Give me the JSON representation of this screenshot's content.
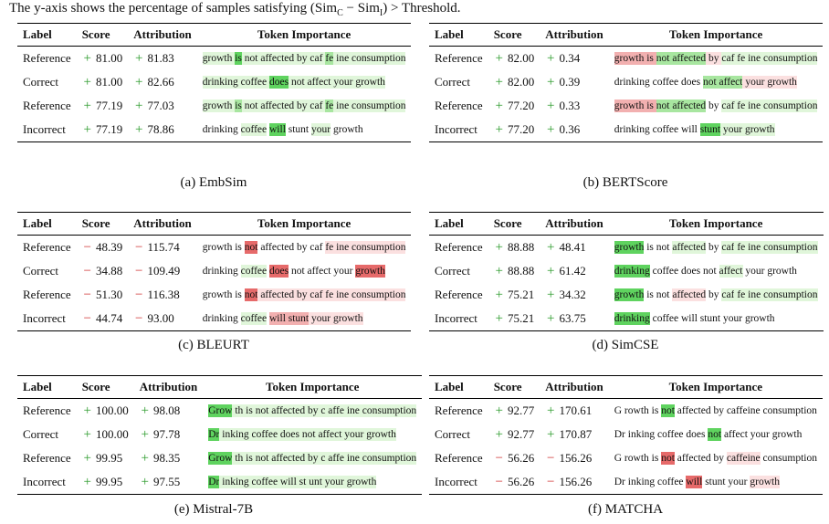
{
  "intro": {
    "prefix": "The y-axis shows the percentage of samples satisfying (Sim",
    "sub_c": "C",
    "mid": " − Sim",
    "sub_i": "I",
    "suffix": ") > Threshold."
  },
  "colors": {
    "positive_sign": "#2e9b2e",
    "negative_sign": "#d03030",
    "green_strong": "#5fd35f",
    "green_medium": "#a8e6a0",
    "green_light": "#e0f6da",
    "red_strong": "#e66a6a",
    "red_medium": "#f2b0b0",
    "red_light": "#fbe0e0"
  },
  "headers": {
    "label": "Label",
    "score": "Score",
    "attribution": "Attribution",
    "token_importance": "Token Importance"
  },
  "panels": [
    {
      "caption": "(a) EmbSim",
      "rows": [
        {
          "label": "Reference",
          "score_sign": "+",
          "score": "81.00",
          "attr_sign": "+",
          "attr": "81.83",
          "tokens": [
            {
              "t": "growth ",
              "c": "gl"
            },
            {
              "t": "is",
              "c": "gs"
            },
            {
              "t": " not affected by caf ",
              "c": "gl"
            },
            {
              "t": "fe",
              "c": "gm"
            },
            {
              "t": " ine consumption",
              "c": "gl"
            }
          ]
        },
        {
          "label": "Correct",
          "score_sign": "+",
          "score": "81.00",
          "attr_sign": "+",
          "attr": "82.66",
          "tokens": [
            {
              "t": "drinking ",
              "c": "gl"
            },
            {
              "t": "coffee ",
              "c": "gl"
            },
            {
              "t": "does",
              "c": "gs"
            },
            {
              "t": " not affect your growth",
              "c": "gl"
            }
          ]
        },
        {
          "label": "Reference",
          "score_sign": "+",
          "score": "77.19",
          "attr_sign": "+",
          "attr": "77.03",
          "tokens": [
            {
              "t": "growth ",
              "c": "gl"
            },
            {
              "t": "is",
              "c": "gm"
            },
            {
              "t": " not affected by caf ",
              "c": "gl"
            },
            {
              "t": "fe",
              "c": "gm"
            },
            {
              "t": " ine consumption",
              "c": "gl"
            }
          ]
        },
        {
          "label": "Incorrect",
          "score_sign": "+",
          "score": "77.19",
          "attr_sign": "+",
          "attr": "78.86",
          "tokens": [
            {
              "t": "drinking ",
              "c": ""
            },
            {
              "t": "coffee",
              "c": "gl"
            },
            {
              "t": " ",
              "c": ""
            },
            {
              "t": "will",
              "c": "gs"
            },
            {
              "t": " stunt ",
              "c": ""
            },
            {
              "t": "your",
              "c": "gl"
            },
            {
              "t": " growth",
              "c": ""
            }
          ]
        }
      ]
    },
    {
      "caption": "(b) BERTScore",
      "rows": [
        {
          "label": "Reference",
          "score_sign": "+",
          "score": "82.00",
          "attr_sign": "+",
          "attr": "0.34",
          "tokens": [
            {
              "t": "growth is ",
              "c": "rm"
            },
            {
              "t": "not affected",
              "c": "gm"
            },
            {
              "t": " by ",
              "c": "rl"
            },
            {
              "t": "caf fe ine consumption",
              "c": "gl"
            }
          ]
        },
        {
          "label": "Correct",
          "score_sign": "+",
          "score": "82.00",
          "attr_sign": "+",
          "attr": "0.39",
          "tokens": [
            {
              "t": "drinking coffee does ",
              "c": ""
            },
            {
              "t": "not affect",
              "c": "gm"
            },
            {
              "t": " your growth",
              "c": "rl"
            }
          ]
        },
        {
          "label": "Reference",
          "score_sign": "+",
          "score": "77.20",
          "attr_sign": "+",
          "attr": "0.33",
          "tokens": [
            {
              "t": "growth is ",
              "c": "rm"
            },
            {
              "t": "not affected",
              "c": "gm"
            },
            {
              "t": " by ",
              "c": ""
            },
            {
              "t": "caf fe ine consumption",
              "c": "gl"
            }
          ]
        },
        {
          "label": "Incorrect",
          "score_sign": "+",
          "score": "77.20",
          "attr_sign": "+",
          "attr": "0.36",
          "tokens": [
            {
              "t": "drinking coffee will ",
              "c": ""
            },
            {
              "t": "stunt",
              "c": "gs"
            },
            {
              "t": " your growth",
              "c": "gl"
            }
          ]
        }
      ]
    },
    {
      "caption": "(c) BLEURT",
      "rows": [
        {
          "label": "Reference",
          "score_sign": "−",
          "score": "48.39",
          "attr_sign": "−",
          "attr": "115.74",
          "tokens": [
            {
              "t": "growth is ",
              "c": ""
            },
            {
              "t": "not",
              "c": "rs"
            },
            {
              "t": " affected by caf ",
              "c": ""
            },
            {
              "t": "fe",
              "c": "rl"
            },
            {
              "t": " ine consumption",
              "c": "rl"
            }
          ]
        },
        {
          "label": "Correct",
          "score_sign": "−",
          "score": "34.88",
          "attr_sign": "−",
          "attr": "109.49",
          "tokens": [
            {
              "t": "drinking ",
              "c": ""
            },
            {
              "t": "coffee",
              "c": "gl"
            },
            {
              "t": " ",
              "c": ""
            },
            {
              "t": "does",
              "c": "rs"
            },
            {
              "t": " not affect your ",
              "c": ""
            },
            {
              "t": "growth",
              "c": "rs"
            }
          ]
        },
        {
          "label": "Reference",
          "score_sign": "−",
          "score": "51.30",
          "attr_sign": "−",
          "attr": "116.38",
          "tokens": [
            {
              "t": "growth is ",
              "c": ""
            },
            {
              "t": "not",
              "c": "rs"
            },
            {
              "t": " affected by caf fe ine consumption",
              "c": "rl"
            }
          ]
        },
        {
          "label": "Incorrect",
          "score_sign": "−",
          "score": "44.74",
          "attr_sign": "−",
          "attr": "93.00",
          "tokens": [
            {
              "t": "drinking ",
              "c": ""
            },
            {
              "t": "coffee",
              "c": "gl"
            },
            {
              "t": " ",
              "c": ""
            },
            {
              "t": "will stunt",
              "c": "rm"
            },
            {
              "t": " your growth",
              "c": "rl"
            }
          ]
        }
      ]
    },
    {
      "caption": "(d) SimCSE",
      "rows": [
        {
          "label": "Reference",
          "score_sign": "+",
          "score": "88.88",
          "attr_sign": "+",
          "attr": "48.41",
          "tokens": [
            {
              "t": "growth",
              "c": "gs"
            },
            {
              "t": " is not ",
              "c": ""
            },
            {
              "t": "affected",
              "c": "gl"
            },
            {
              "t": " by ",
              "c": ""
            },
            {
              "t": "caf",
              "c": "gl"
            },
            {
              "t": " fe ine consumption",
              "c": "gl"
            }
          ]
        },
        {
          "label": "Correct",
          "score_sign": "+",
          "score": "88.88",
          "attr_sign": "+",
          "attr": "61.42",
          "tokens": [
            {
              "t": "drinking",
              "c": "gs"
            },
            {
              "t": " coffee does not ",
              "c": ""
            },
            {
              "t": "affect",
              "c": "gl"
            },
            {
              "t": " your growth",
              "c": ""
            }
          ]
        },
        {
          "label": "Reference",
          "score_sign": "+",
          "score": "75.21",
          "attr_sign": "+",
          "attr": "34.32",
          "tokens": [
            {
              "t": "growth",
              "c": "gs"
            },
            {
              "t": " is not ",
              "c": ""
            },
            {
              "t": "affected",
              "c": "rl"
            },
            {
              "t": " by ",
              "c": ""
            },
            {
              "t": "caf",
              "c": "gl"
            },
            {
              "t": " fe ine consumption",
              "c": "gl"
            }
          ]
        },
        {
          "label": "Incorrect",
          "score_sign": "+",
          "score": "75.21",
          "attr_sign": "+",
          "attr": "63.75",
          "tokens": [
            {
              "t": "drinking",
              "c": "gs"
            },
            {
              "t": " coffee will stunt your growth",
              "c": ""
            }
          ]
        }
      ]
    },
    {
      "caption": "(e) Mistral-7B",
      "rows": [
        {
          "label": "Reference",
          "score_sign": "+",
          "score": "100.00",
          "attr_sign": "+",
          "attr": "98.08",
          "tokens": [
            {
              "t": "Grow",
              "c": "gs"
            },
            {
              "t": " th is not affected by c affe ine consumption",
              "c": "gl"
            }
          ]
        },
        {
          "label": "Correct",
          "score_sign": "+",
          "score": "100.00",
          "attr_sign": "+",
          "attr": "97.78",
          "tokens": [
            {
              "t": "Dr",
              "c": "gs"
            },
            {
              "t": " inking coffee does not affect your growth",
              "c": "gl"
            }
          ]
        },
        {
          "label": "Reference",
          "score_sign": "+",
          "score": "99.95",
          "attr_sign": "+",
          "attr": "98.35",
          "tokens": [
            {
              "t": "Grow",
              "c": "gs"
            },
            {
              "t": " th is not affected by c affe ine consumption",
              "c": "gl"
            }
          ]
        },
        {
          "label": "Incorrect",
          "score_sign": "+",
          "score": "99.95",
          "attr_sign": "+",
          "attr": "97.55",
          "tokens": [
            {
              "t": "Dr",
              "c": "gs"
            },
            {
              "t": " inking coffee will st unt your growth",
              "c": "gl"
            }
          ]
        }
      ]
    },
    {
      "caption": "(f) MATCHA",
      "rows": [
        {
          "label": "Reference",
          "score_sign": "+",
          "score": "92.77",
          "attr_sign": "+",
          "attr": "170.61",
          "tokens": [
            {
              "t": "G rowth is ",
              "c": ""
            },
            {
              "t": "not",
              "c": "gs"
            },
            {
              "t": " affected by caffeine consumption",
              "c": ""
            }
          ]
        },
        {
          "label": "Correct",
          "score_sign": "+",
          "score": "92.77",
          "attr_sign": "+",
          "attr": "170.87",
          "tokens": [
            {
              "t": "Dr inking coffee does ",
              "c": ""
            },
            {
              "t": "not",
              "c": "gs"
            },
            {
              "t": " affect your growth",
              "c": ""
            }
          ]
        },
        {
          "label": "Reference",
          "score_sign": "−",
          "score": "56.26",
          "attr_sign": "−",
          "attr": "156.26",
          "tokens": [
            {
              "t": "G rowth is ",
              "c": ""
            },
            {
              "t": "not",
              "c": "rs"
            },
            {
              "t": " affected by ",
              "c": ""
            },
            {
              "t": "caffeine",
              "c": "rl"
            },
            {
              "t": " consumption",
              "c": ""
            }
          ]
        },
        {
          "label": "Incorrect",
          "score_sign": "−",
          "score": "56.26",
          "attr_sign": "−",
          "attr": "156.26",
          "tokens": [
            {
              "t": "Dr inking coffee ",
              "c": ""
            },
            {
              "t": "will",
              "c": "rs"
            },
            {
              "t": " stunt your ",
              "c": ""
            },
            {
              "t": "growth",
              "c": "rl"
            }
          ]
        }
      ]
    }
  ]
}
